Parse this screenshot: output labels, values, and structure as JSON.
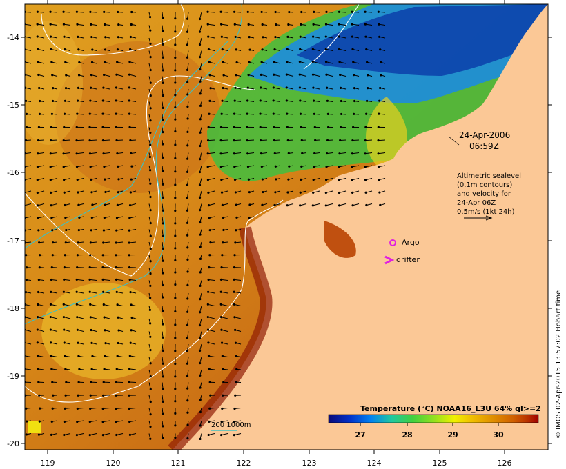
{
  "map": {
    "lon_ticks": [
      "119",
      "120",
      "121",
      "122",
      "123",
      "124",
      "125",
      "126"
    ],
    "lat_ticks": [
      "-14",
      "-15",
      "-16",
      "-17",
      "-18",
      "-19",
      "-20"
    ],
    "timestamp": [
      "24-Apr-2006",
      "06:59Z"
    ],
    "altimetry_note": [
      "Altimetric sealevel",
      "(0.1m contours)",
      "and velocity for",
      "24-Apr 06Z",
      "0.5m/s (1kt 24h)"
    ],
    "argo_label": "Argo",
    "drifter_label": "drifter",
    "isobath_label": "200  1000m",
    "colorbar": {
      "title": "Temperature (°C) NOAA16_L3U 64% ql>=2",
      "ticks": [
        "27",
        "28",
        "29",
        "30"
      ],
      "colors": [
        "#0a0a78",
        "#0030c8",
        "#0080f0",
        "#20c8a0",
        "#40d040",
        "#90e020",
        "#f0f000",
        "#f0c000",
        "#e09000",
        "#d06000",
        "#b83000",
        "#a00000"
      ]
    },
    "credit": "© IMOS 02-Apr-2015 13:57:02 Hobart time",
    "colors": {
      "land": "#fbc896",
      "contour": "#ffffff",
      "isobath": "#40c0c0",
      "argo": "#e020e0",
      "drifter": "#e020e0"
    }
  }
}
